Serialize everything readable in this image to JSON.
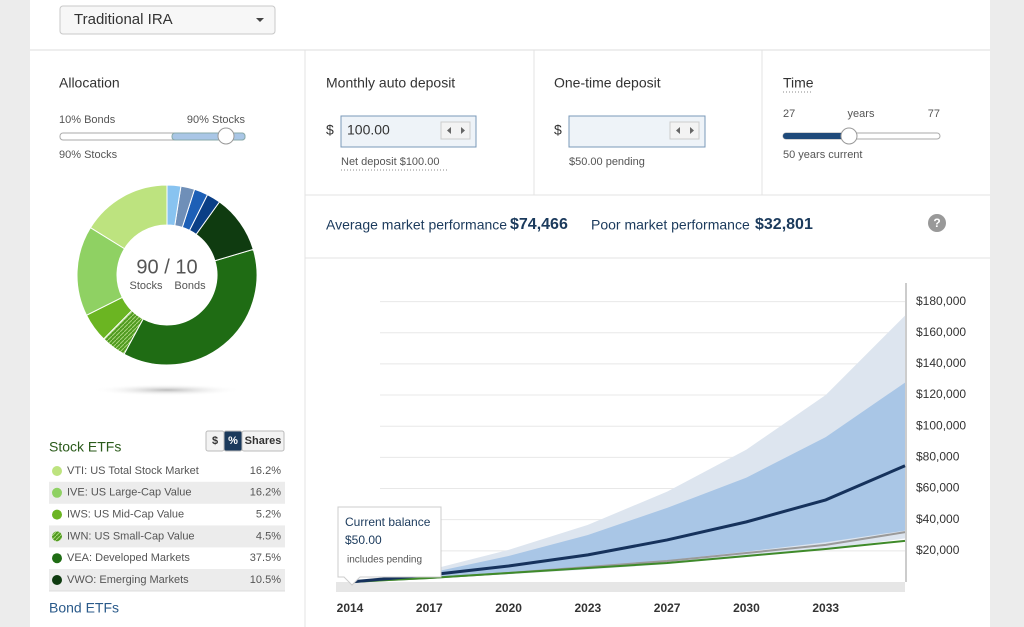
{
  "header": {
    "account": "Traditional IRA"
  },
  "allocation": {
    "title": "Allocation",
    "bonds_label": "10% Bonds",
    "stocks_label": "90% Stocks",
    "current": "90% Stocks",
    "center_value": "90 / 10",
    "center_stocks": "Stocks",
    "center_bonds": "Bonds"
  },
  "stock_etfs": {
    "title": "Stock ETFs",
    "toggles": [
      "$",
      "%",
      "Shares"
    ],
    "names": [
      "VTI: US Total Stock Market",
      "IVE: US Large-Cap Value",
      "IWS: US Mid-Cap Value",
      "IWN: US Small-Cap Value",
      "VEA: Developed Markets",
      "VWO: Emerging Markets"
    ],
    "values": [
      16.2,
      16.2,
      5.2,
      4.5,
      37.5,
      10.5
    ],
    "value_labels": [
      "16.2%",
      "16.2%",
      "5.2%",
      "4.5%",
      "37.5%",
      "10.5%"
    ],
    "colors": [
      "#bde37f",
      "#8fd163",
      "#6bb522",
      "#4f9a1f",
      "#1f6c14",
      "#0f3b10"
    ]
  },
  "bond_etfs": {
    "title": "Bond ETFs"
  },
  "monthly": {
    "title": "Monthly auto deposit",
    "currency": "$",
    "amount": "100.00",
    "note": "Net deposit $100.00"
  },
  "one_time": {
    "title": "One-time deposit",
    "currency": "$",
    "note": "$50.00 pending"
  },
  "time": {
    "title": "Time",
    "min": "27",
    "unit": "years",
    "max": "77",
    "note": "50 years current"
  },
  "performance": {
    "average_label": "Average market performance",
    "average_value": "$74,466",
    "poor_label": "Poor market performance",
    "poor_value": "$32,801"
  },
  "help": "?",
  "chart_data": {
    "type": "line",
    "categories": [
      "2014",
      "2017",
      "2020",
      "2023",
      "2027",
      "2030",
      "2033",
      null
    ],
    "bands": [
      {
        "color": "#dde5ef",
        "low": [
          0,
          2200,
          5000,
          8000,
          11500,
          16000,
          21000,
          28000
        ],
        "high": [
          0,
          7700,
          20600,
          36700,
          58000,
          85000,
          120000,
          171000
        ]
      },
      {
        "color": "#a9c6e6",
        "low": [
          0,
          2800,
          6200,
          10000,
          14000,
          19500,
          25500,
          33000
        ],
        "high": [
          0,
          5800,
          16700,
          30200,
          47600,
          67000,
          93000,
          128000
        ]
      }
    ],
    "series": [
      {
        "color": "#9a9a9a",
        "values": [
          0,
          2600,
          5800,
          9600,
          13500,
          18600,
          23800,
          32000
        ]
      },
      {
        "color": "#3f8a2a",
        "values": [
          0,
          2600,
          5800,
          9000,
          12200,
          16700,
          21200,
          26400
        ]
      },
      {
        "color": "#16325c",
        "values": [
          0,
          4500,
          10300,
          17400,
          27000,
          38600,
          52700,
          74600
        ]
      }
    ],
    "ylim": [
      0,
      190000
    ],
    "yticks": [
      {
        "value": 20000,
        "label": "$20,000"
      },
      {
        "value": 40000,
        "label": "$40,000"
      },
      {
        "value": 60000,
        "label": "$60,000"
      },
      {
        "value": 80000,
        "label": "$80,000"
      },
      {
        "value": 100000,
        "label": "$100,000"
      },
      {
        "value": 120000,
        "label": "$120,000"
      },
      {
        "value": 140000,
        "label": "$140,000"
      },
      {
        "value": 160000,
        "label": "$160,000"
      },
      {
        "value": 180000,
        "label": "$180,000"
      }
    ],
    "grid": true,
    "annotation": {
      "title": "Current balance",
      "value": "$50.00",
      "note": "includes pending"
    }
  }
}
